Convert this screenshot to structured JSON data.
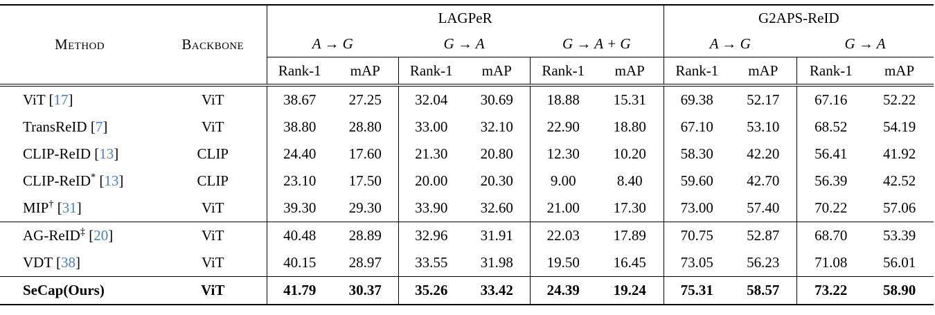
{
  "table": {
    "citation_color": "#4a80c0",
    "col_headers": {
      "method": "Method",
      "backbone": "Backbone"
    },
    "groups": [
      {
        "label": "LAGPeR",
        "settings": [
          "A → G",
          "G → A",
          "G → A + G"
        ]
      },
      {
        "label": "G2APS-ReID",
        "settings": [
          "A → G",
          "G → A"
        ]
      }
    ],
    "metric_labels": [
      "Rank-1",
      "mAP"
    ],
    "rows": [
      {
        "method": "ViT",
        "sup": "",
        "cite": "17",
        "backbone": "ViT",
        "bold": false,
        "rule_above": false,
        "values": [
          "38.67",
          "27.25",
          "32.04",
          "30.69",
          "18.88",
          "15.31",
          "69.38",
          "52.17",
          "67.16",
          "52.22"
        ]
      },
      {
        "method": "TransReID",
        "sup": "",
        "cite": "7",
        "backbone": "ViT",
        "bold": false,
        "rule_above": false,
        "values": [
          "38.80",
          "28.80",
          "33.00",
          "32.10",
          "22.90",
          "18.80",
          "67.10",
          "53.10",
          "68.52",
          "54.19"
        ]
      },
      {
        "method": "CLIP-ReID",
        "sup": "",
        "cite": "13",
        "backbone": "CLIP",
        "bold": false,
        "rule_above": false,
        "values": [
          "24.40",
          "17.60",
          "21.30",
          "20.80",
          "12.30",
          "10.20",
          "58.30",
          "42.20",
          "56.41",
          "41.92"
        ]
      },
      {
        "method": "CLIP-ReID",
        "sup": "*",
        "cite": "13",
        "backbone": "CLIP",
        "bold": false,
        "rule_above": false,
        "values": [
          "23.10",
          "17.50",
          "20.00",
          "20.30",
          "9.00",
          "8.40",
          "59.60",
          "42.70",
          "56.39",
          "42.52"
        ]
      },
      {
        "method": "MIP",
        "sup": "†",
        "cite": "31",
        "backbone": "ViT",
        "bold": false,
        "rule_above": false,
        "values": [
          "39.30",
          "29.30",
          "33.90",
          "32.60",
          "21.00",
          "17.30",
          "73.00",
          "57.40",
          "70.22",
          "57.06"
        ]
      },
      {
        "method": "AG-ReID",
        "sup": "‡",
        "cite": "20",
        "backbone": "ViT",
        "bold": false,
        "rule_above": true,
        "values": [
          "40.48",
          "28.89",
          "32.96",
          "31.91",
          "22.03",
          "17.89",
          "70.75",
          "52.87",
          "68.70",
          "53.39"
        ]
      },
      {
        "method": "VDT",
        "sup": "",
        "cite": "38",
        "backbone": "ViT",
        "bold": false,
        "rule_above": false,
        "values": [
          "40.15",
          "28.97",
          "33.55",
          "31.98",
          "19.50",
          "16.45",
          "73.05",
          "56.23",
          "71.08",
          "56.01"
        ]
      },
      {
        "method": "SeCap(Ours)",
        "sup": "",
        "cite": "",
        "backbone": "ViT",
        "bold": true,
        "rule_above": true,
        "values": [
          "41.79",
          "30.37",
          "35.26",
          "33.42",
          "24.39",
          "19.24",
          "75.31",
          "58.57",
          "73.22",
          "58.90"
        ]
      }
    ]
  }
}
